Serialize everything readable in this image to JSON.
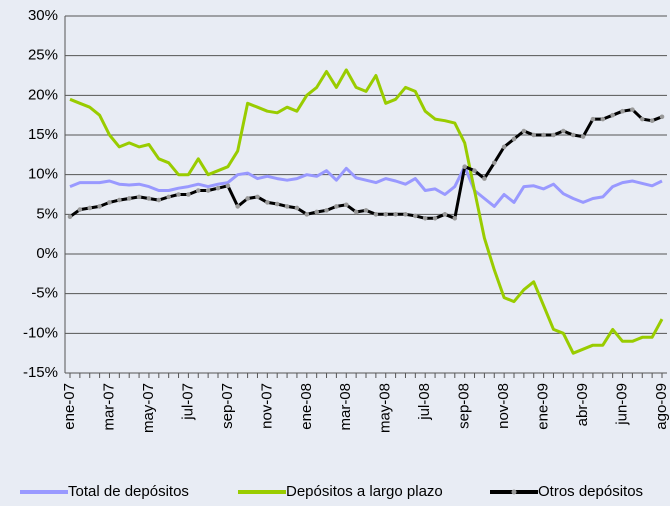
{
  "chart_data": {
    "type": "line",
    "categories": [
      "ene-07",
      null,
      null,
      null,
      "mar-07",
      null,
      null,
      null,
      "may-07",
      null,
      null,
      null,
      "jul-07",
      null,
      null,
      null,
      "sep-07",
      null,
      null,
      null,
      "nov-07",
      null,
      null,
      null,
      "ene-08",
      null,
      null,
      null,
      "mar-08",
      null,
      null,
      null,
      "may-08",
      null,
      null,
      null,
      "jul-08",
      null,
      null,
      null,
      "sep-08",
      null,
      null,
      null,
      "nov-08",
      null,
      null,
      null,
      "ene-09",
      null,
      null,
      null,
      "abr-09",
      null,
      null,
      null,
      "jun-09",
      null,
      null,
      null,
      "ago-09"
    ],
    "series": [
      {
        "name": "Total de depósitos",
        "color": "#9999ff",
        "values": [
          8.5,
          9,
          9,
          9,
          9.2,
          8.8,
          8.7,
          8.8,
          8.5,
          8,
          8,
          8.3,
          8.5,
          8.8,
          8.5,
          8.8,
          9,
          10,
          10.2,
          9.5,
          9.8,
          9.5,
          9.3,
          9.5,
          10,
          9.8,
          10.5,
          9.3,
          10.8,
          9.6,
          9.3,
          9,
          9.5,
          9.2,
          8.8,
          9.5,
          8,
          8.2,
          7.5,
          8.5,
          11,
          8,
          7,
          6,
          7.5,
          6.5,
          8.5,
          8.6,
          8.2,
          8.8,
          7.6,
          7,
          6.5,
          7,
          7.2,
          8.5,
          9,
          9.2,
          8.9,
          8.6,
          9.2
        ]
      },
      {
        "name": "Depósitos a largo plazo",
        "color": "#99cc00",
        "values": [
          19.5,
          19,
          18.5,
          17.5,
          15,
          13.5,
          14,
          13.5,
          13.8,
          12,
          11.5,
          10,
          10,
          12,
          10,
          10.5,
          11,
          13,
          19,
          18.5,
          18,
          17.8,
          18.5,
          18,
          20,
          21,
          23,
          21,
          23.2,
          21,
          20.5,
          22.5,
          19,
          19.5,
          21,
          20.5,
          18,
          17,
          16.8,
          16.5,
          14,
          8,
          2,
          -2,
          -5.5,
          -6,
          -4.5,
          -3.5,
          -6.5,
          -9.5,
          -10,
          -12.5,
          -12,
          -11.5,
          -11.5,
          -9.5,
          -11,
          -11,
          -10.5,
          -10.5,
          -8.2
        ]
      },
      {
        "name": "Otros depósitos",
        "color": "#000000",
        "values": [
          4.7,
          5.6,
          5.8,
          6,
          6.5,
          6.8,
          7,
          7.2,
          7,
          6.8,
          7.2,
          7.5,
          7.5,
          8,
          8,
          8.3,
          8.6,
          6,
          7,
          7.2,
          6.5,
          6.3,
          6,
          5.8,
          5,
          5.3,
          5.5,
          6,
          6.2,
          5.3,
          5.5,
          5,
          5,
          5,
          5,
          4.8,
          4.5,
          4.5,
          5,
          4.5,
          11,
          10.5,
          9.5,
          11.5,
          13.5,
          14.5,
          15.5,
          15,
          15,
          15,
          15.5,
          15,
          14.8,
          17,
          17,
          17.5,
          18,
          18.2,
          17,
          16.8,
          17.3
        ]
      }
    ],
    "ylim": [
      -15,
      30
    ],
    "yticks": [
      {
        "value": -15,
        "label": "-15%"
      },
      {
        "value": -10,
        "label": "-10%"
      },
      {
        "value": -5,
        "label": "-5%"
      },
      {
        "value": 0,
        "label": "0%"
      },
      {
        "value": 5,
        "label": "5%"
      },
      {
        "value": 10,
        "label": "10%"
      },
      {
        "value": 15,
        "label": "15%"
      },
      {
        "value": 20,
        "label": "20%"
      },
      {
        "value": 25,
        "label": "25%"
      },
      {
        "value": 30,
        "label": "30%"
      }
    ],
    "grid": true,
    "legend": "bottom"
  }
}
